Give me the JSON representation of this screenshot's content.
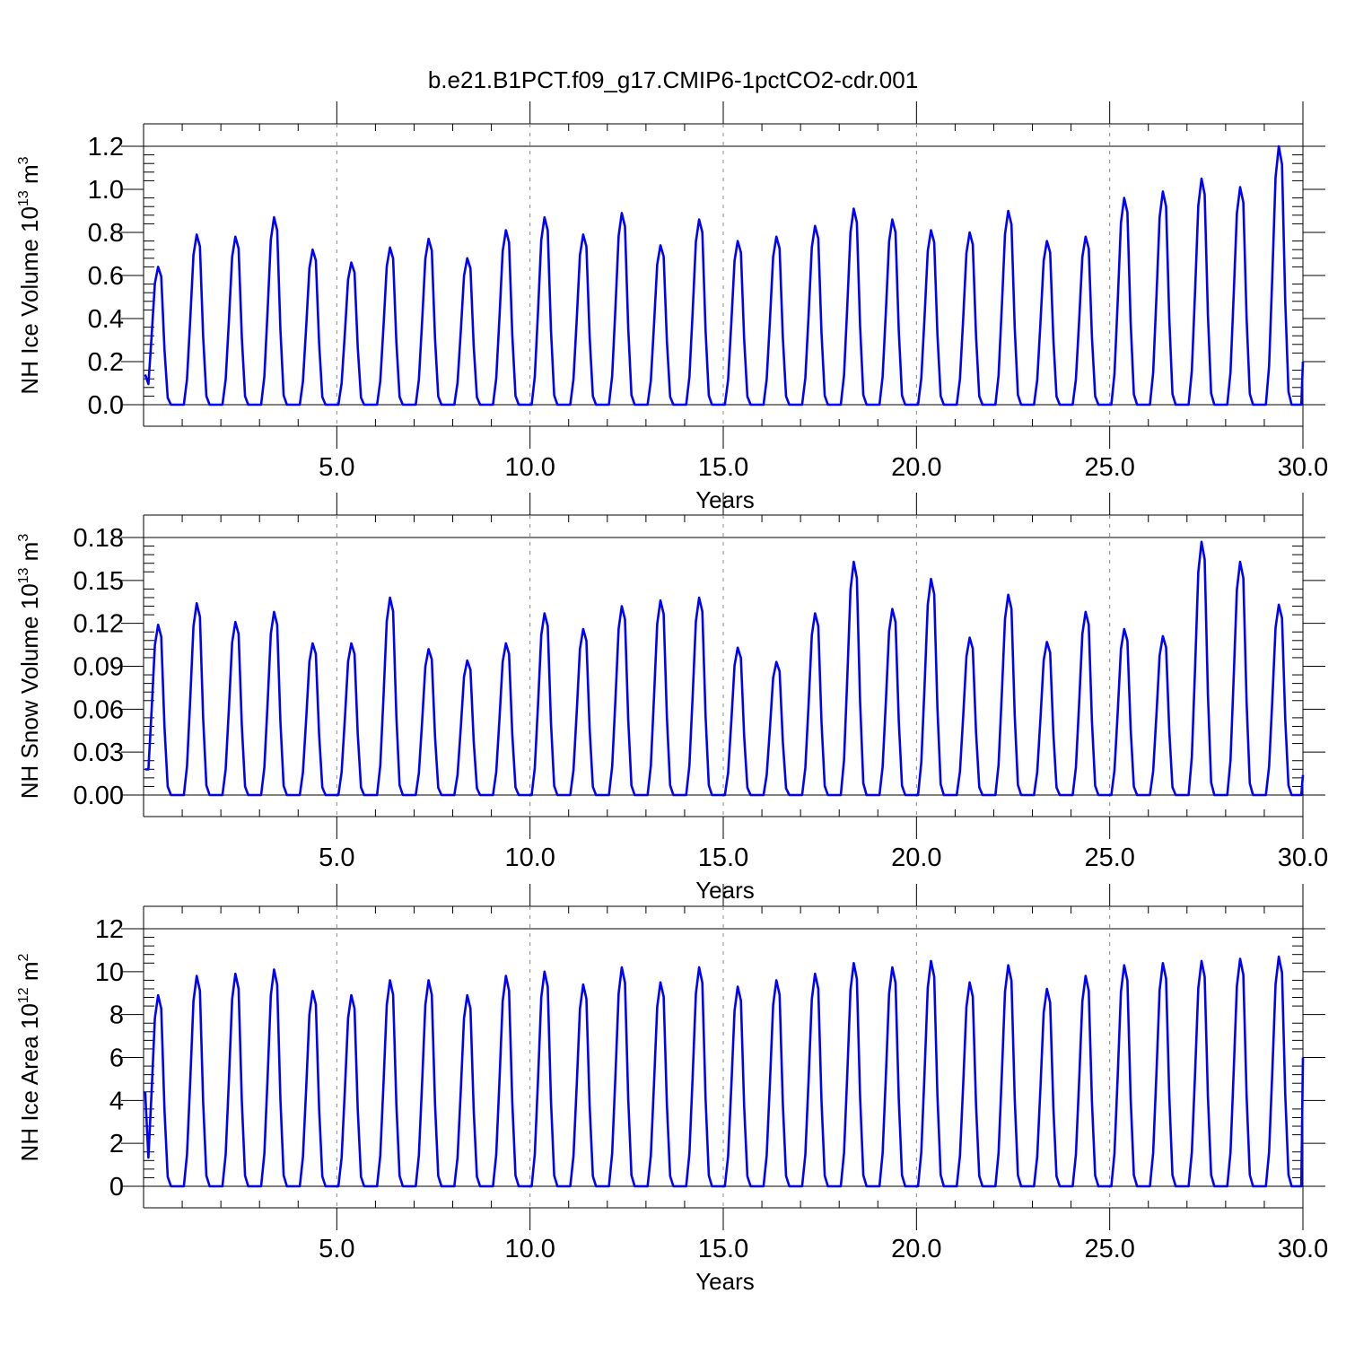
{
  "figure_title": "b.e21.B1PCT.f09_g17.CMIP6-1pctCO2-cdr.001",
  "line_color": "#0000ff",
  "chart_data": [
    {
      "type": "line",
      "xlabel": "Years",
      "ylabel_text": "NH Ice Volume 10",
      "ylabel_exp": "13",
      "ylabel_unit": "m",
      "ylabel_unit_exp": "3",
      "xlim": [
        0.0,
        30.0
      ],
      "ylim": [
        0.0,
        1.2
      ],
      "xticks": [
        5,
        10,
        15,
        20,
        25,
        30
      ],
      "xtick_labels": [
        "5.0",
        "10.0",
        "15.0",
        "20.0",
        "25.0",
        "30.0"
      ],
      "yticks": [
        0.0,
        0.2,
        0.4,
        0.6,
        0.8,
        1.0,
        1.2
      ],
      "ytick_labels": [
        "0.0",
        "0.2",
        "0.4",
        "0.6",
        "0.8",
        "1.0",
        "1.2"
      ],
      "vgrid": "dashed at major x ticks",
      "start_value": 0.14,
      "end_value": 0.2,
      "annual_max": [
        0.64,
        0.79,
        0.78,
        0.87,
        0.72,
        0.66,
        0.73,
        0.77,
        0.68,
        0.81,
        0.87,
        0.79,
        0.89,
        0.74,
        0.86,
        0.76,
        0.78,
        0.83,
        0.91,
        0.86,
        0.81,
        0.8,
        0.9,
        0.76,
        0.78,
        0.96,
        0.99,
        1.05,
        1.01,
        1.2
      ]
    },
    {
      "type": "line",
      "xlabel": "Years",
      "ylabel_text": "NH Snow Volume 10",
      "ylabel_exp": "13",
      "ylabel_unit": "m",
      "ylabel_unit_exp": "3",
      "xlim": [
        0.0,
        30.0
      ],
      "ylim": [
        0.0,
        0.18
      ],
      "xticks": [
        5,
        10,
        15,
        20,
        25,
        30
      ],
      "xtick_labels": [
        "5.0",
        "10.0",
        "15.0",
        "20.0",
        "25.0",
        "30.0"
      ],
      "yticks": [
        0.0,
        0.03,
        0.06,
        0.09,
        0.12,
        0.15,
        0.18
      ],
      "ytick_labels": [
        "0.00",
        "0.03",
        "0.06",
        "0.09",
        "0.12",
        "0.15",
        "0.18"
      ],
      "vgrid": "dashed at major x ticks",
      "start_value": 0.018,
      "end_value": 0.014,
      "annual_max": [
        0.119,
        0.134,
        0.121,
        0.128,
        0.106,
        0.106,
        0.138,
        0.102,
        0.094,
        0.106,
        0.127,
        0.116,
        0.132,
        0.136,
        0.138,
        0.103,
        0.093,
        0.127,
        0.163,
        0.13,
        0.151,
        0.11,
        0.14,
        0.107,
        0.128,
        0.116,
        0.111,
        0.177,
        0.163,
        0.133
      ]
    },
    {
      "type": "line",
      "xlabel": "Years",
      "ylabel_text": "NH Ice Area 10",
      "ylabel_exp": "12",
      "ylabel_unit": "m",
      "ylabel_unit_exp": "2",
      "xlim": [
        0.0,
        30.0
      ],
      "ylim": [
        0,
        12
      ],
      "xticks": [
        5,
        10,
        15,
        20,
        25,
        30
      ],
      "xtick_labels": [
        "5.0",
        "10.0",
        "15.0",
        "20.0",
        "25.0",
        "30.0"
      ],
      "yticks": [
        0,
        2,
        4,
        6,
        8,
        10,
        12
      ],
      "ytick_labels": [
        "0",
        "2",
        "4",
        "6",
        "8",
        "10",
        "12"
      ],
      "vgrid": "dashed at major x ticks",
      "start_value": 4.4,
      "end_value": 6.0,
      "annual_max": [
        8.9,
        9.8,
        9.9,
        10.1,
        9.1,
        8.9,
        9.6,
        9.6,
        8.9,
        9.8,
        10.0,
        9.4,
        10.2,
        9.5,
        10.2,
        9.3,
        9.6,
        9.9,
        10.4,
        10.2,
        10.5,
        9.5,
        10.3,
        9.2,
        9.8,
        10.3,
        10.4,
        10.5,
        10.6,
        10.7
      ]
    }
  ]
}
